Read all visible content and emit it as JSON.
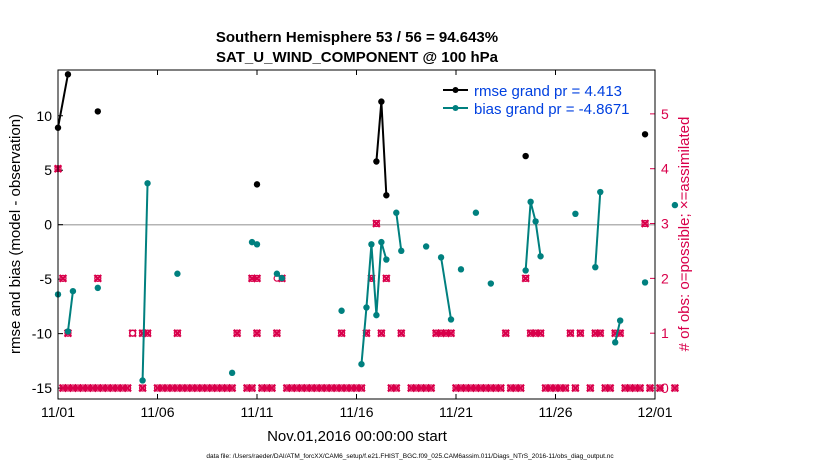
{
  "chart_data": {
    "type": "line",
    "title": "Southern Hemisphere 53 / 56 = 94.643%",
    "subtitle": "SAT_U_WIND_COMPONENT @ 100 hPa",
    "xlabel": "Nov.01,2016 00:00:00 start",
    "ylabel_left": "rmse and bias (model - observation)",
    "ylabel_right": "# of obs: o=possible; ×=assimilated",
    "footnote": "data file: /Users/raeder/DAI/ATM_forcXX/CAM6_setup/f.e21.FHIST_BGC.f09_025.CAM6assim.011/Diags_NTrS_2016-11/obs_diag_output.nc",
    "x_tick_labels": [
      "11/01",
      "11/06",
      "11/11",
      "11/16",
      "11/21",
      "11/26",
      "12/01"
    ],
    "x_tick_days": [
      0,
      5,
      10,
      15,
      20,
      25,
      30
    ],
    "xlim": [
      0,
      30
    ],
    "ylim_left": [
      -16,
      14.2
    ],
    "y_ticks_left": [
      -15,
      -10,
      -5,
      0,
      5,
      10
    ],
    "ylim_right": [
      -0.2,
      5.8
    ],
    "y_ticks_right": [
      0,
      1,
      2,
      3,
      4,
      5
    ],
    "grid": false,
    "legend_position": "top-right",
    "colors": {
      "rmse": "#000000",
      "bias": "#00807f",
      "obs": "#d9004b",
      "zero_line": "#b4b4b4",
      "legend_text": "#0040e0"
    },
    "series": [
      {
        "name": "rmse grand pr = 4.413",
        "color": "#000000",
        "points": [
          [
            0.0,
            8.9
          ],
          [
            0.5,
            13.8
          ],
          null,
          [
            2.0,
            10.4
          ],
          null,
          [
            10.0,
            3.7
          ],
          null,
          [
            16.0,
            5.8
          ],
          [
            16.25,
            11.3
          ],
          [
            16.5,
            2.7
          ],
          null,
          [
            23.5,
            6.3
          ],
          null,
          [
            29.5,
            8.3
          ]
        ]
      },
      {
        "name": "bias grand pr = -4.8671",
        "color": "#00807f",
        "points": [
          [
            0.0,
            -6.4
          ],
          null,
          [
            0.5,
            -9.8
          ],
          [
            0.75,
            -6.1
          ],
          null,
          [
            2.0,
            -5.8
          ],
          null,
          [
            4.25,
            -14.3
          ],
          [
            4.5,
            3.8
          ],
          null,
          [
            6.0,
            -4.5
          ],
          null,
          [
            8.75,
            -13.6
          ],
          null,
          [
            9.75,
            -1.6
          ],
          [
            10.0,
            -1.8
          ],
          null,
          [
            11.0,
            -4.5
          ],
          [
            11.25,
            -4.9
          ],
          null,
          [
            14.25,
            -7.9
          ],
          null,
          [
            15.25,
            -12.8
          ],
          [
            15.5,
            -7.6
          ],
          [
            15.75,
            -1.8
          ],
          [
            16.0,
            -8.3
          ],
          [
            16.25,
            -1.6
          ],
          [
            16.5,
            -3.2
          ],
          null,
          [
            17.0,
            1.1
          ],
          [
            17.25,
            -2.4
          ],
          null,
          [
            18.5,
            -2.0
          ],
          null,
          [
            19.25,
            -3.0
          ],
          [
            19.75,
            -8.7
          ],
          null,
          [
            20.25,
            -4.1
          ],
          null,
          [
            21.0,
            1.1
          ],
          null,
          [
            21.75,
            -5.4
          ],
          null,
          [
            23.5,
            -4.2
          ],
          [
            23.75,
            2.1
          ],
          [
            24.0,
            0.3
          ],
          [
            24.25,
            -2.9
          ],
          null,
          [
            26.0,
            1.0
          ],
          null,
          [
            27.0,
            -3.9
          ],
          [
            27.25,
            3.0
          ],
          null,
          [
            28.0,
            -10.8
          ],
          [
            28.25,
            -8.8
          ],
          null,
          [
            29.5,
            -5.3
          ],
          null,
          [
            31.0,
            1.8
          ]
        ]
      }
    ],
    "obs_possible": [
      [
        0.0,
        4
      ],
      [
        0.25,
        0
      ],
      [
        0.25,
        2
      ],
      [
        0.5,
        0
      ],
      [
        0.75,
        0
      ],
      [
        0.5,
        1
      ],
      [
        1.0,
        0
      ],
      [
        1.25,
        0
      ],
      [
        1.5,
        0
      ],
      [
        1.75,
        0
      ],
      [
        2.0,
        0
      ],
      [
        2.0,
        2
      ],
      [
        2.25,
        0
      ],
      [
        2.5,
        0
      ],
      [
        2.75,
        0
      ],
      [
        3.0,
        0
      ],
      [
        3.25,
        0
      ],
      [
        3.5,
        0
      ],
      [
        3.75,
        1
      ],
      [
        4.25,
        0
      ],
      [
        4.25,
        1
      ],
      [
        4.5,
        1
      ],
      [
        5.0,
        0
      ],
      [
        5.25,
        0
      ],
      [
        5.5,
        0
      ],
      [
        5.75,
        0
      ],
      [
        6.0,
        0
      ],
      [
        6.0,
        1
      ],
      [
        6.25,
        0
      ],
      [
        6.5,
        0
      ],
      [
        6.75,
        0
      ],
      [
        7.0,
        0
      ],
      [
        7.25,
        0
      ],
      [
        7.5,
        0
      ],
      [
        7.75,
        0
      ],
      [
        8.0,
        0
      ],
      [
        8.25,
        0
      ],
      [
        8.5,
        0
      ],
      [
        8.75,
        0
      ],
      [
        9.0,
        1
      ],
      [
        9.5,
        0
      ],
      [
        9.75,
        0
      ],
      [
        9.75,
        2
      ],
      [
        10.0,
        1
      ],
      [
        10.0,
        2
      ],
      [
        10.25,
        0
      ],
      [
        10.5,
        0
      ],
      [
        10.75,
        0
      ],
      [
        11.0,
        1
      ],
      [
        11.25,
        2
      ],
      [
        11.5,
        0
      ],
      [
        11.75,
        0
      ],
      [
        12.0,
        0
      ],
      [
        12.25,
        0
      ],
      [
        12.5,
        0
      ],
      [
        12.75,
        0
      ],
      [
        13.0,
        0
      ],
      [
        13.25,
        0
      ],
      [
        13.5,
        0
      ],
      [
        13.75,
        0
      ],
      [
        14.0,
        0
      ],
      [
        14.25,
        0
      ],
      [
        14.25,
        1
      ],
      [
        14.5,
        0
      ],
      [
        14.75,
        0
      ],
      [
        15.0,
        0
      ],
      [
        15.25,
        0
      ],
      [
        15.5,
        1
      ],
      [
        15.75,
        2
      ],
      [
        16.0,
        3
      ],
      [
        16.25,
        1
      ],
      [
        16.5,
        2
      ],
      [
        16.75,
        0
      ],
      [
        17.0,
        0
      ],
      [
        17.25,
        1
      ],
      [
        17.75,
        0
      ],
      [
        18.0,
        0
      ],
      [
        18.25,
        0
      ],
      [
        18.5,
        0
      ],
      [
        18.75,
        0
      ],
      [
        19.0,
        1
      ],
      [
        19.25,
        1
      ],
      [
        19.5,
        1
      ],
      [
        19.75,
        1
      ],
      [
        20.0,
        0
      ],
      [
        20.25,
        0
      ],
      [
        20.5,
        0
      ],
      [
        20.75,
        0
      ],
      [
        21.0,
        0
      ],
      [
        21.25,
        0
      ],
      [
        21.5,
        0
      ],
      [
        21.75,
        0
      ],
      [
        22.0,
        0
      ],
      [
        22.25,
        0
      ],
      [
        22.5,
        1
      ],
      [
        22.75,
        0
      ],
      [
        23.0,
        0
      ],
      [
        23.25,
        0
      ],
      [
        23.5,
        2
      ],
      [
        23.75,
        1
      ],
      [
        24.0,
        1
      ],
      [
        24.25,
        1
      ],
      [
        24.5,
        0
      ],
      [
        24.75,
        0
      ],
      [
        25.0,
        0
      ],
      [
        25.25,
        0
      ],
      [
        25.5,
        0
      ],
      [
        25.75,
        1
      ],
      [
        26.0,
        0
      ],
      [
        26.25,
        1
      ],
      [
        26.75,
        0
      ],
      [
        27.0,
        1
      ],
      [
        27.25,
        1
      ],
      [
        27.5,
        0
      ],
      [
        27.75,
        0
      ],
      [
        28.0,
        1
      ],
      [
        28.25,
        1
      ],
      [
        28.5,
        0
      ],
      [
        28.75,
        0
      ],
      [
        29.0,
        0
      ],
      [
        29.25,
        0
      ],
      [
        29.5,
        3
      ],
      [
        29.75,
        0
      ],
      [
        30.25,
        0
      ],
      [
        31.0,
        0
      ]
    ],
    "obs_possible_only": [
      [
        3.75,
        1
      ],
      [
        11.0,
        2
      ]
    ]
  }
}
